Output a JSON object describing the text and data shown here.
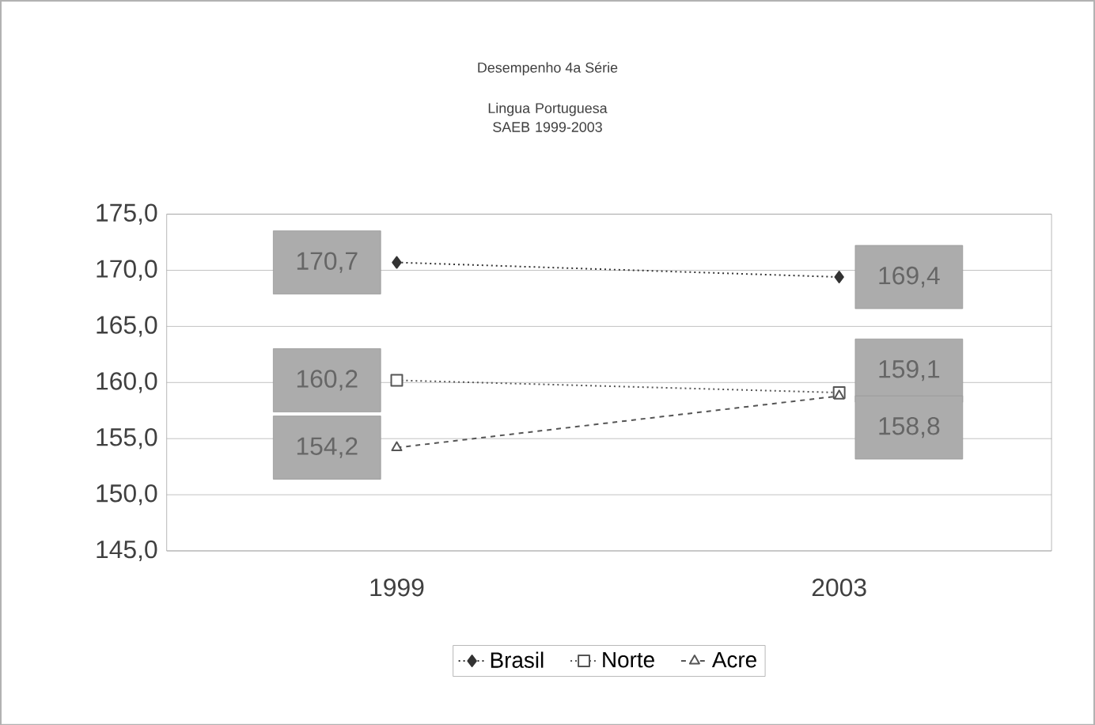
{
  "chart_data": {
    "type": "line",
    "title": "Desempenho 4a Série",
    "subtitle": "Lingua Portuguesa SAEB 1999-2003",
    "categories": [
      "1999",
      "2003"
    ],
    "series": [
      {
        "name": "Brasil",
        "color": "#333333",
        "values": [
          170.7,
          169.4
        ],
        "value_labels": [
          "170,7",
          "169,4"
        ],
        "marker": "diamond",
        "line_style": "dotted"
      },
      {
        "name": "Norte",
        "color": "#555555",
        "values": [
          160.2,
          159.1
        ],
        "value_labels": [
          "160,2",
          "159,1"
        ],
        "marker": "square",
        "line_style": "dotted"
      },
      {
        "name": "Acre",
        "color": "#555555",
        "values": [
          154.2,
          158.8
        ],
        "value_labels": [
          "154,2",
          "158,8"
        ],
        "marker": "triangle",
        "line_style": "dashed"
      }
    ],
    "ylim": [
      145,
      175
    ],
    "yticks": [
      {
        "value": 145,
        "label": "145,0"
      },
      {
        "value": 150,
        "label": "150,0"
      },
      {
        "value": 155,
        "label": "155,0"
      },
      {
        "value": 160,
        "label": "160,0"
      },
      {
        "value": 165,
        "label": "165,0"
      },
      {
        "value": 170,
        "label": "170,0"
      },
      {
        "value": 175,
        "label": "175,0"
      }
    ],
    "grid": "y",
    "legend": "bottom"
  }
}
